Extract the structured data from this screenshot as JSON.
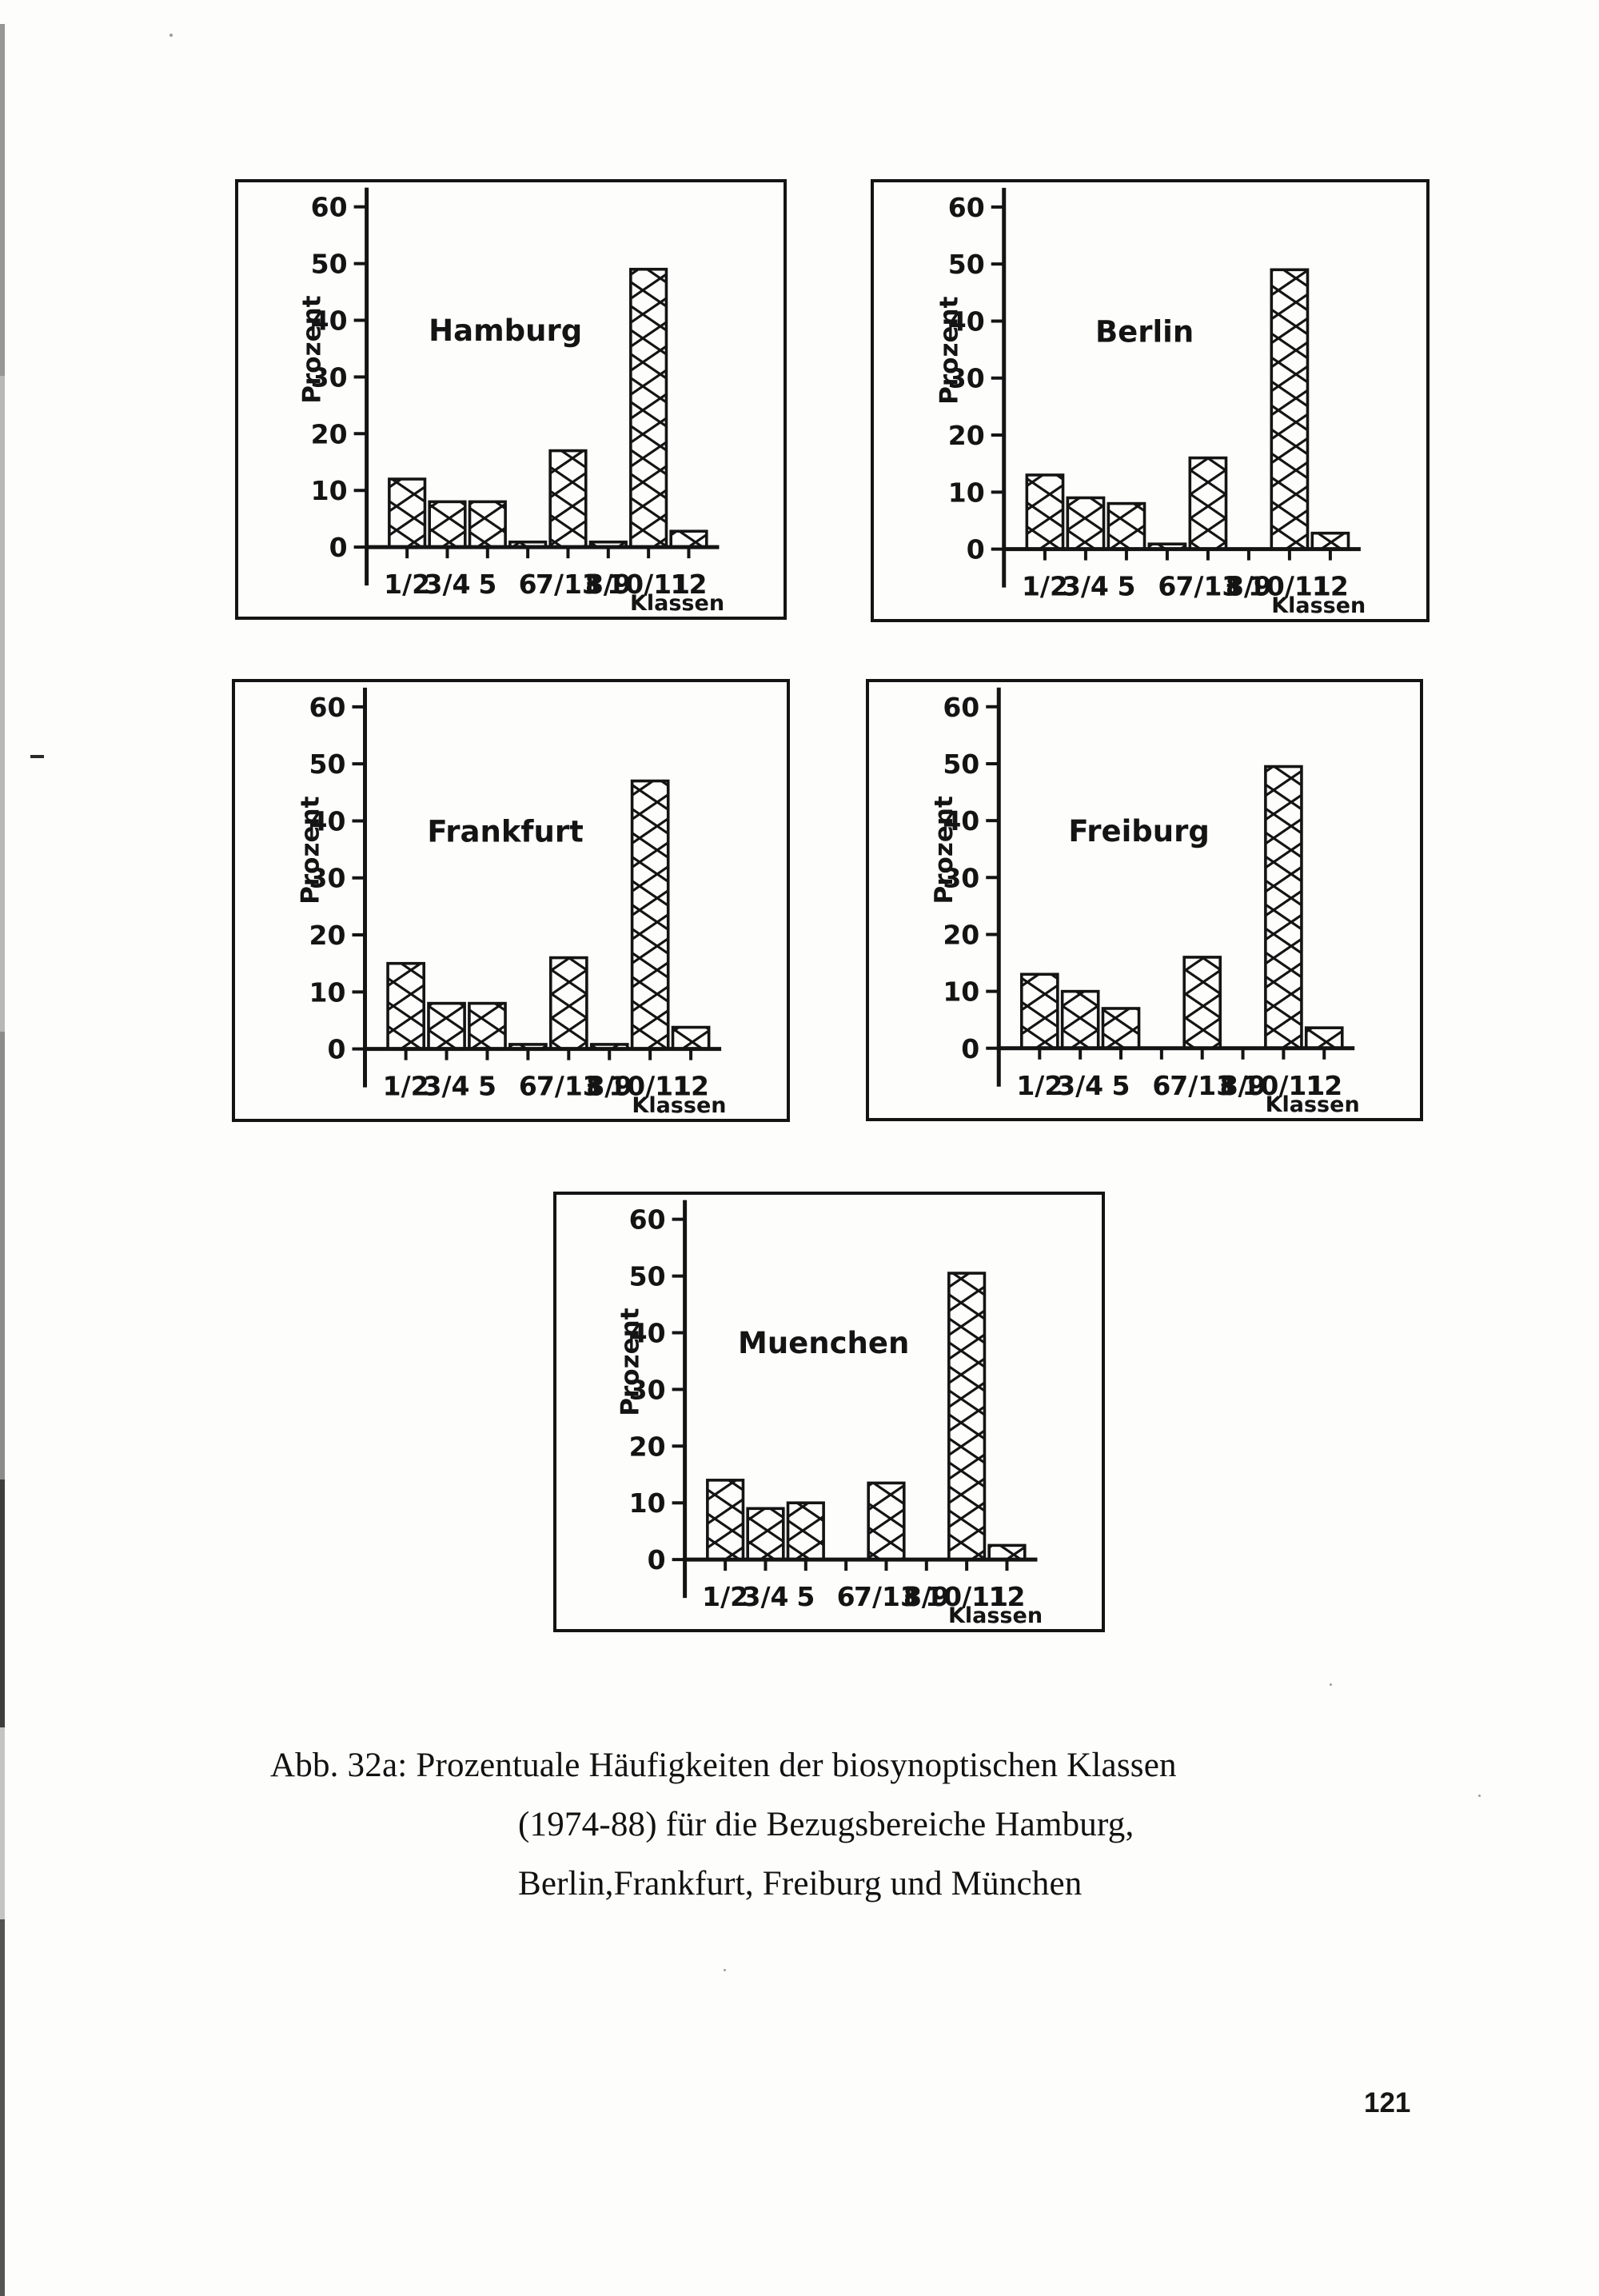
{
  "page": {
    "number": "121"
  },
  "colors": {
    "ink": "#141414",
    "paper": "#fdfdfc"
  },
  "caption": {
    "line1": "Abb. 32a: Prozentuale Häufigkeiten der biosynoptischen Klassen",
    "line2": "(1974-88) für die Bezugsbereiche Hamburg,",
    "line3": "Berlin,Frankfurt, Freiburg und München"
  },
  "chart_data": [
    {
      "type": "bar",
      "title": "Hamburg",
      "categories": [
        "1/2",
        "3/4",
        "5",
        "6",
        "7/13",
        "8/9",
        "10/11",
        "12"
      ],
      "values": [
        12,
        8,
        8,
        0.9,
        17,
        0.9,
        49,
        2.8
      ],
      "ylabel": "Prozent",
      "xlabel": "Klassen",
      "ylim": [
        0,
        60
      ],
      "yticks": [
        0,
        10,
        20,
        30,
        40,
        50,
        60
      ],
      "grid": false,
      "legend": false,
      "bar_fill": "crosshatch"
    },
    {
      "type": "bar",
      "title": "Berlin",
      "categories": [
        "1/2",
        "3/4",
        "5",
        "6",
        "7/13",
        "8/9",
        "10/11",
        "12"
      ],
      "values": [
        13,
        9,
        8,
        0.9,
        16,
        0,
        49,
        2.8
      ],
      "ylabel": "Prozent",
      "xlabel": "Klassen",
      "ylim": [
        0,
        60
      ],
      "yticks": [
        0,
        10,
        20,
        30,
        40,
        50,
        60
      ],
      "grid": false,
      "legend": false,
      "bar_fill": "crosshatch"
    },
    {
      "type": "bar",
      "title": "Frankfurt",
      "categories": [
        "1/2",
        "3/4",
        "5",
        "6",
        "7/13",
        "8/9",
        "10/11",
        "12"
      ],
      "values": [
        15,
        8,
        8,
        0.8,
        16,
        0.8,
        47,
        3.8
      ],
      "ylabel": "Prozent",
      "xlabel": "Klassen",
      "ylim": [
        0,
        60
      ],
      "yticks": [
        0,
        10,
        20,
        30,
        40,
        50,
        60
      ],
      "grid": false,
      "legend": false,
      "bar_fill": "crosshatch"
    },
    {
      "type": "bar",
      "title": "Freiburg",
      "categories": [
        "1/2",
        "3/4",
        "5",
        "6",
        "7/13",
        "8/9",
        "10/11",
        "12"
      ],
      "values": [
        13,
        10,
        7,
        0,
        16,
        0,
        49.5,
        3.6
      ],
      "ylabel": "Prozent",
      "xlabel": "Klassen",
      "ylim": [
        0,
        60
      ],
      "yticks": [
        0,
        10,
        20,
        30,
        40,
        50,
        60
      ],
      "grid": false,
      "legend": false,
      "bar_fill": "crosshatch"
    },
    {
      "type": "bar",
      "title": "Muenchen",
      "categories": [
        "1/2",
        "3/4",
        "5",
        "6",
        "7/13",
        "8/9",
        "10/11",
        "12"
      ],
      "values": [
        14,
        9,
        10,
        0,
        13.5,
        0,
        50.5,
        2.5
      ],
      "ylabel": "Prozent",
      "xlabel": "Klassen",
      "ylim": [
        0,
        60
      ],
      "yticks": [
        0,
        10,
        20,
        30,
        40,
        50,
        60
      ],
      "grid": false,
      "legend": false,
      "bar_fill": "crosshatch"
    }
  ]
}
